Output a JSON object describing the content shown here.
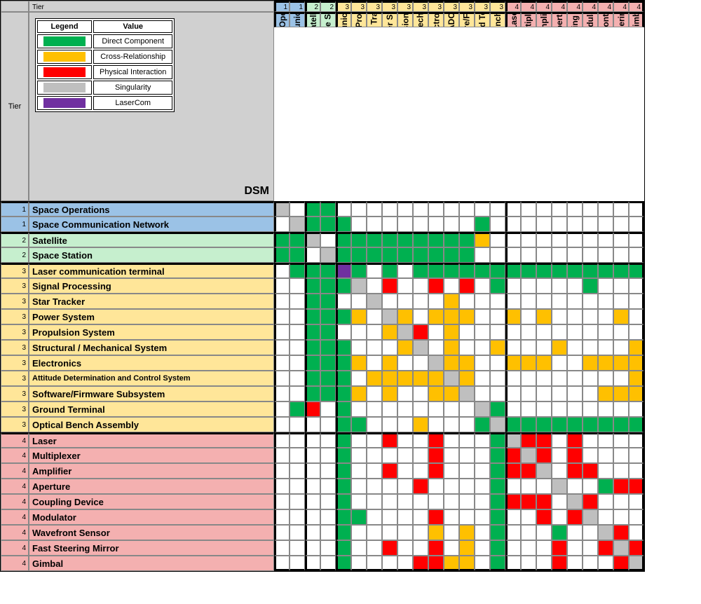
{
  "title": "DSM",
  "tierHeading": "Tier",
  "colors": {
    "green": "#00b050",
    "orange": "#ffc000",
    "red": "#ff0000",
    "grey": "#bfbfbf",
    "purple": "#7030a0",
    "lightOrange": "#f8cbad",
    "tier1": "#9bc2e6",
    "tier2": "#c6efce",
    "tier3": "#ffe699",
    "tier4": "#f4b0b0",
    "headerGrey": "#d0d0d0",
    "white": "#ffffff"
  },
  "legend": {
    "headers": [
      "Legend",
      "Value"
    ],
    "rows": [
      {
        "color": "green",
        "label": "Direct Component"
      },
      {
        "color": "orange",
        "label": "Cross-Relationship"
      },
      {
        "color": "red",
        "label": "Physical Interaction"
      },
      {
        "color": "grey",
        "label": "Singularity"
      },
      {
        "color": "purple",
        "label": "LaserCom"
      }
    ]
  },
  "items": [
    {
      "tier": 1,
      "label": "Space Operations"
    },
    {
      "tier": 1,
      "label": "Space Communication Network"
    },
    {
      "tier": 2,
      "label": "Satellite"
    },
    {
      "tier": 2,
      "label": "Space Station"
    },
    {
      "tier": 3,
      "label": "Laser communication terminal"
    },
    {
      "tier": 3,
      "label": "Signal Processing"
    },
    {
      "tier": 3,
      "label": "Star Tracker"
    },
    {
      "tier": 3,
      "label": "Power System"
    },
    {
      "tier": 3,
      "label": "Propulsion System"
    },
    {
      "tier": 3,
      "label": "Structural / Mechanical System"
    },
    {
      "tier": 3,
      "label": "Electronics"
    },
    {
      "tier": 3,
      "label": "ADCS"
    },
    {
      "tier": 3,
      "label": "Software/Firmware"
    },
    {
      "tier": 3,
      "label": "Ground Terminal"
    },
    {
      "tier": 3,
      "label": "Optical Bench Assembly"
    },
    {
      "tier": 4,
      "label": "Laser"
    },
    {
      "tier": 4,
      "label": "Multiplexer"
    },
    {
      "tier": 4,
      "label": "Amplifier"
    },
    {
      "tier": 4,
      "label": "Aperture"
    },
    {
      "tier": 4,
      "label": "Coupling Device"
    },
    {
      "tier": 4,
      "label": "Modulator"
    },
    {
      "tier": 4,
      "label": "Wavefront Sensor"
    },
    {
      "tier": 4,
      "label": "Fast Steering mirror"
    },
    {
      "tier": 4,
      "label": "Gimbal"
    }
  ],
  "rowLabelsOverride": {
    "11": "Attitude Determination and Control System",
    "12": "Software/Firmware Subsystem",
    "22": "Fast Steering Mirror"
  },
  "tierBlocks": [
    0,
    2,
    4,
    15,
    24
  ],
  "matrix": [
    [
      "X",
      "",
      "G",
      "G",
      "",
      "",
      "",
      "",
      "",
      "",
      "",
      "",
      "",
      "",
      "",
      "",
      "",
      "",
      "",
      "",
      "",
      "",
      "",
      ""
    ],
    [
      "",
      "X",
      "G",
      "G",
      "G",
      "",
      "",
      "",
      "",
      "",
      "",
      "",
      "",
      "G",
      "",
      "",
      "",
      "",
      "",
      "",
      "",
      "",
      "",
      ""
    ],
    [
      "G",
      "G",
      "X",
      "",
      "G",
      "G",
      "G",
      "G",
      "G",
      "G",
      "G",
      "G",
      "G",
      "O",
      "",
      "",
      "",
      "",
      "",
      "",
      "",
      "",
      "",
      ""
    ],
    [
      "G",
      "G",
      "",
      "X",
      "G",
      "G",
      "G",
      "G",
      "G",
      "G",
      "G",
      "G",
      "G",
      "",
      "",
      "",
      "",
      "",
      "",
      "",
      "",
      "",
      "",
      ""
    ],
    [
      "",
      "G",
      "G",
      "G",
      "P",
      "G",
      "",
      "G",
      "",
      "G",
      "G",
      "G",
      "G",
      "G",
      "G",
      "G",
      "G",
      "G",
      "G",
      "G",
      "G",
      "G",
      "G",
      "G"
    ],
    [
      "",
      "",
      "G",
      "G",
      "G",
      "X",
      "",
      "R",
      "",
      "",
      "R",
      "",
      "R",
      "",
      "G",
      "",
      "",
      "",
      "",
      "",
      "G",
      "",
      "",
      ""
    ],
    [
      "",
      "",
      "G",
      "G",
      "",
      "",
      "X",
      "",
      "",
      "",
      "",
      "O",
      "",
      "",
      "",
      "",
      "",
      "",
      "",
      "",
      "",
      "",
      "",
      ""
    ],
    [
      "",
      "",
      "G",
      "G",
      "G",
      "O",
      "",
      "X",
      "O",
      "",
      "O",
      "O",
      "O",
      "",
      "",
      "O",
      "",
      "O",
      "",
      "",
      "",
      "",
      "O",
      ""
    ],
    [
      "",
      "",
      "G",
      "G",
      "",
      "",
      "",
      "O",
      "X",
      "R",
      "",
      "O",
      "",
      "",
      "",
      "",
      "",
      "",
      "",
      "",
      "",
      "",
      "",
      ""
    ],
    [
      "",
      "",
      "G",
      "G",
      "G",
      "",
      "",
      "",
      "O",
      "X",
      "",
      "O",
      "",
      "",
      "O",
      "",
      "",
      "",
      "O",
      "",
      "",
      "",
      "",
      "O"
    ],
    [
      "",
      "",
      "G",
      "G",
      "G",
      "O",
      "",
      "O",
      "",
      "",
      "X",
      "O",
      "O",
      "",
      "",
      "O",
      "O",
      "O",
      "",
      "",
      "O",
      "O",
      "O",
      "O"
    ],
    [
      "",
      "",
      "G",
      "G",
      "G",
      "",
      "O",
      "O",
      "O",
      "O",
      "O",
      "X",
      "O",
      "",
      "",
      "",
      "",
      "",
      "",
      "",
      "",
      "",
      "",
      "O"
    ],
    [
      "",
      "",
      "G",
      "G",
      "G",
      "O",
      "",
      "O",
      "",
      "",
      "O",
      "O",
      "X",
      "",
      "",
      "",
      "",
      "",
      "",
      "",
      "",
      "O",
      "O",
      "O"
    ],
    [
      "",
      "G",
      "R",
      "",
      "G",
      "",
      "",
      "",
      "",
      "",
      "",
      "",
      "",
      "X",
      "G",
      "",
      "",
      "",
      "",
      "",
      "",
      "",
      "",
      ""
    ],
    [
      "",
      "",
      "",
      "",
      "G",
      "G",
      "",
      "",
      "",
      "O",
      "",
      "",
      "",
      "G",
      "X",
      "G",
      "G",
      "G",
      "G",
      "G",
      "G",
      "G",
      "G",
      "G"
    ],
    [
      "",
      "",
      "",
      "",
      "G",
      "",
      "",
      "R",
      "",
      "",
      "R",
      "",
      "",
      "",
      "G",
      "X",
      "R",
      "R",
      "",
      "R",
      "",
      "",
      "",
      ""
    ],
    [
      "",
      "",
      "",
      "",
      "G",
      "",
      "",
      "",
      "",
      "",
      "R",
      "",
      "",
      "",
      "G",
      "R",
      "X",
      "R",
      "",
      "R",
      "",
      "",
      "",
      ""
    ],
    [
      "",
      "",
      "",
      "",
      "G",
      "",
      "",
      "R",
      "",
      "",
      "R",
      "",
      "",
      "",
      "G",
      "R",
      "R",
      "X",
      "",
      "R",
      "R",
      "",
      "",
      ""
    ],
    [
      "",
      "",
      "",
      "",
      "G",
      "",
      "",
      "",
      "",
      "R",
      "",
      "",
      "",
      "",
      "G",
      "",
      "",
      "",
      "X",
      "",
      "",
      "G",
      "R",
      "R"
    ],
    [
      "",
      "",
      "",
      "",
      "G",
      "",
      "",
      "",
      "",
      "",
      "",
      "",
      "",
      "",
      "G",
      "R",
      "R",
      "R",
      "",
      "X",
      "R",
      "",
      "",
      ""
    ],
    [
      "",
      "",
      "",
      "",
      "G",
      "G",
      "",
      "",
      "",
      "",
      "R",
      "",
      "",
      "",
      "G",
      "",
      "",
      "R",
      "",
      "R",
      "X",
      "",
      "",
      ""
    ],
    [
      "",
      "",
      "",
      "",
      "G",
      "",
      "",
      "",
      "",
      "",
      "O",
      "",
      "O",
      "",
      "G",
      "",
      "",
      "",
      "G",
      "",
      "",
      "X",
      "R",
      ""
    ],
    [
      "",
      "",
      "",
      "",
      "G",
      "",
      "",
      "R",
      "",
      "",
      "R",
      "",
      "O",
      "",
      "G",
      "",
      "",
      "",
      "R",
      "",
      "",
      "R",
      "X",
      "R"
    ],
    [
      "",
      "",
      "",
      "",
      "G",
      "",
      "",
      "",
      "",
      "R",
      "R",
      "O",
      "O",
      "",
      "G",
      "",
      "",
      "",
      "R",
      "",
      "",
      "",
      "R",
      "X"
    ]
  ]
}
